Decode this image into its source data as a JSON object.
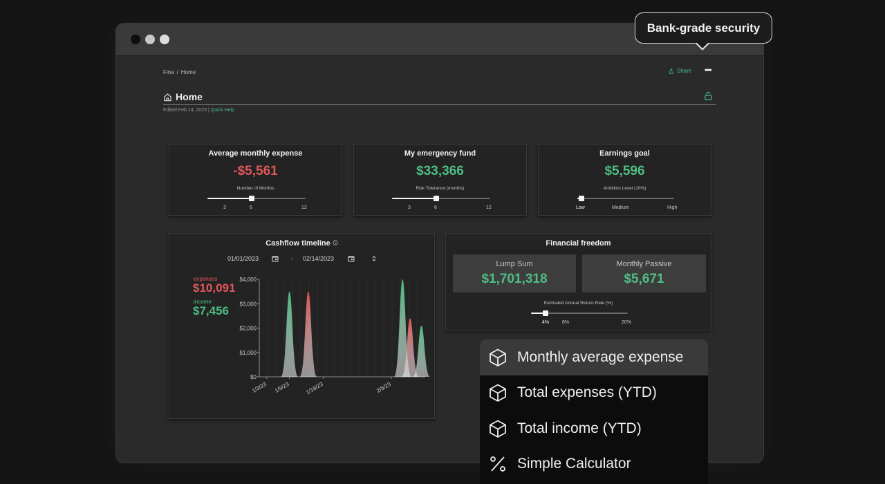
{
  "tooltip": {
    "text": "Bank-grade security"
  },
  "breadcrumb": {
    "root": "Fina",
    "separator": "/",
    "current": "Home"
  },
  "toolbar": {
    "share_label": "Share",
    "more_label": "•••"
  },
  "page": {
    "title": "Home",
    "edited_text": "Edited Feb 14, 2023 |",
    "help_link": "Quick Help"
  },
  "cards": {
    "expense": {
      "title": "Average monthly expense",
      "value": "-$5,561",
      "slider_label": "Number of Months",
      "ticks": [
        "3",
        "6",
        "12"
      ],
      "slider_value": 6,
      "slider_min": 0,
      "slider_max": 12
    },
    "emergency": {
      "title": "My emergency fund",
      "value": "$33,366",
      "slider_label": "Risk Tolerance (months)",
      "ticks": [
        "3",
        "6",
        "12"
      ],
      "slider_value": 6,
      "slider_min": 0,
      "slider_max": 12
    },
    "earnings": {
      "title": "Earnings goal",
      "value": "$5,596",
      "slider_label": "Ambition Level (10%)",
      "ticks": [
        "Low",
        "Medium",
        "High"
      ],
      "slider_value": 0,
      "slider_min": 0,
      "slider_max": 1
    }
  },
  "cashflow": {
    "title": "Cashflow timeline",
    "info_icon": "info-icon",
    "start_date": "01/01/2023",
    "end_date": "02/14/2023",
    "date_separator": "-",
    "expenses_label": "expenses",
    "expenses_value": "$10,091",
    "income_label": "income",
    "income_value": "$7,456"
  },
  "freedom": {
    "title": "Financial freedom",
    "lump_label": "Lump Sum",
    "lump_value": "$1,701,318",
    "passive_label": "Monthly Passive",
    "passive_value": "$5,671",
    "slider_label": "Estimated Annual Return Rate (%)",
    "ticks": [
      "4%",
      "8%",
      "20%"
    ],
    "slider_value": 4
  },
  "menu": {
    "items": [
      {
        "label": "Monthly average expense",
        "icon": "cube-icon"
      },
      {
        "label": "Total expenses (YTD)",
        "icon": "cube-icon"
      },
      {
        "label": "Total income (YTD)",
        "icon": "cube-icon"
      },
      {
        "label": "Simple Calculator",
        "icon": "percent-icon"
      }
    ]
  },
  "colors": {
    "accent_green": "#4fbf86",
    "accent_red": "#e2585c"
  },
  "chart_data": {
    "type": "area",
    "title": "Cashflow timeline",
    "xlabel": "",
    "ylabel": "",
    "ylim": [
      0,
      4000
    ],
    "y_ticks": [
      "$0",
      "$1,000",
      "$2,000",
      "$3,000",
      "$4,000"
    ],
    "x_ticks": [
      "1/3/23",
      "1/9/23",
      "1/18/23",
      "2/5/23"
    ],
    "x_tick_days": [
      2,
      8,
      17,
      35
    ],
    "x_range_days": [
      0,
      44
    ],
    "grid": true,
    "series": [
      {
        "name": "income",
        "color": "#4fbf86",
        "peaks": [
          {
            "day": 8,
            "value": 3500
          },
          {
            "day": 38,
            "value": 4000
          },
          {
            "day": 43,
            "value": 2100
          }
        ]
      },
      {
        "name": "expenses",
        "color": "#e2585c",
        "peaks": [
          {
            "day": 13,
            "value": 3500
          },
          {
            "day": 40,
            "value": 2400
          }
        ]
      }
    ]
  }
}
